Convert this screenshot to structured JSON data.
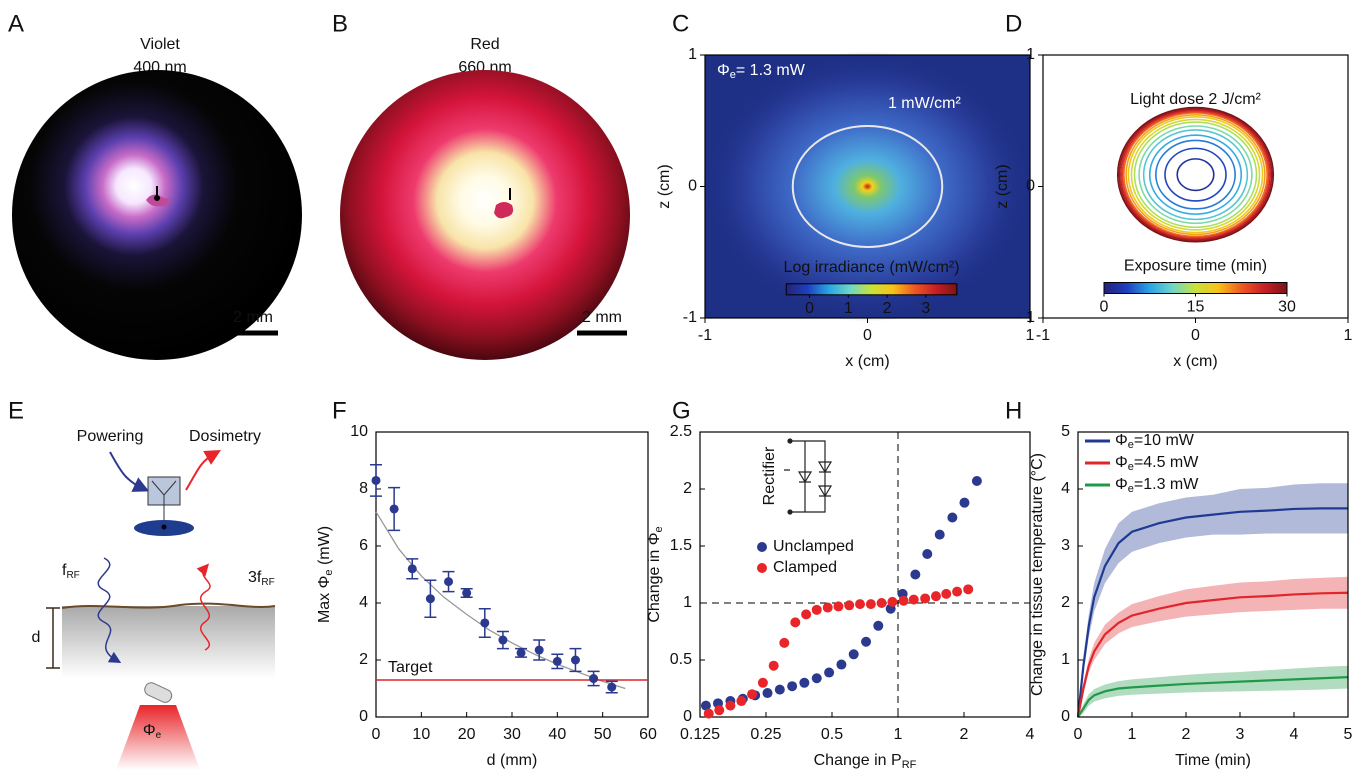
{
  "panels": {
    "A": {
      "label": "A",
      "title": [
        "Violet",
        "400 nm"
      ],
      "scale_bar": "2 mm"
    },
    "B": {
      "label": "B",
      "title": [
        "Red",
        "660 nm"
      ],
      "scale_bar": "2 mm"
    },
    "E": {
      "label": "E",
      "powering": "Powering",
      "dosimetry": "Dosimetry",
      "f_rf": {
        "main": "f",
        "sub": "RF"
      },
      "f3_rf": {
        "main": "3f",
        "sub": "RF"
      },
      "d": "d",
      "phi": {
        "main": "Φ",
        "sub": "e"
      }
    }
  },
  "chart_data": [
    {
      "type": "heatmap",
      "label": "C",
      "xlabel": "x (cm)",
      "ylabel": "z (cm)",
      "xlim": [
        -1,
        1
      ],
      "ylim": [
        -1,
        1
      ],
      "xticks": [
        -1,
        0,
        1
      ],
      "yticks": [
        -1,
        0,
        1
      ],
      "annotation": {
        "main": "Φ",
        "sub": "e",
        "tail": "= 1.3 mW"
      },
      "contour": {
        "label": "1 mW/cm²",
        "level": 1,
        "radius": 0.46,
        "color": "#e8e8e8"
      },
      "colorbar": {
        "label": "Log irradiance (mW/cm²)",
        "lim": [
          -0.6,
          3.8
        ],
        "ticks": [
          0,
          1,
          2,
          3
        ]
      }
    },
    {
      "type": "contour",
      "label": "D",
      "xlabel": "x (cm)",
      "ylabel": "z (cm)",
      "xlim": [
        -1,
        1
      ],
      "ylim": [
        -1,
        1
      ],
      "xticks": [
        -1,
        0,
        1
      ],
      "yticks": [
        -1,
        0,
        1
      ],
      "annotation": "Light dose 2 J/cm²",
      "center": [
        0,
        0.09
      ],
      "contours": [
        {
          "level": 2,
          "radius": 0.12
        },
        {
          "level": 4,
          "radius": 0.2
        },
        {
          "level": 6,
          "radius": 0.26
        },
        {
          "level": 8,
          "radius": 0.3
        },
        {
          "level": 10,
          "radius": 0.34
        },
        {
          "level": 12,
          "radius": 0.37
        },
        {
          "level": 14,
          "radius": 0.4
        },
        {
          "level": 16,
          "radius": 0.42
        },
        {
          "level": 18,
          "radius": 0.44
        },
        {
          "level": 20,
          "radius": 0.455
        },
        {
          "level": 22,
          "radius": 0.47
        },
        {
          "level": 24,
          "radius": 0.48
        },
        {
          "level": 26,
          "radius": 0.49
        },
        {
          "level": 28,
          "radius": 0.5
        },
        {
          "level": 30,
          "radius": 0.51
        }
      ],
      "colorbar": {
        "label": "Exposure time (min)",
        "lim": [
          0,
          30
        ],
        "ticks": [
          0,
          15,
          30
        ]
      }
    },
    {
      "type": "errorbar",
      "label": "F",
      "xlabel": "d (mm)",
      "ylabel": {
        "main": "Max Φ",
        "sub": "e",
        "tail": " (mW)"
      },
      "xlim": [
        0,
        60
      ],
      "ylim": [
        0,
        10
      ],
      "xticks": [
        0,
        10,
        20,
        30,
        40,
        50,
        60
      ],
      "yticks": [
        0,
        2,
        4,
        6,
        8,
        10
      ],
      "color": "#2b3a8f",
      "x": [
        0,
        4,
        8,
        12,
        16,
        20,
        24,
        28,
        32,
        36,
        40,
        44,
        48,
        52
      ],
      "values": [
        8.3,
        7.3,
        5.2,
        4.15,
        4.75,
        4.35,
        3.3,
        2.7,
        2.25,
        2.35,
        1.95,
        2.0,
        1.35,
        1.05
      ],
      "errors": [
        0.55,
        0.75,
        0.35,
        0.65,
        0.35,
        0.15,
        0.5,
        0.3,
        0.15,
        0.35,
        0.25,
        0.4,
        0.25,
        0.2
      ],
      "fit": {
        "color": "#999999",
        "x": [
          0,
          5,
          10,
          15,
          20,
          25,
          30,
          35,
          40,
          45,
          50,
          55
        ],
        "values": [
          7.2,
          5.9,
          4.95,
          4.2,
          3.6,
          3.05,
          2.6,
          2.2,
          1.85,
          1.55,
          1.25,
          1.0
        ]
      },
      "target": {
        "label": "Target",
        "value": 1.3,
        "color": "#d9262a"
      }
    },
    {
      "type": "scatter",
      "label": "G",
      "xlabel": {
        "main": "Change in P",
        "sub": "RF"
      },
      "ylabel": {
        "main": "Change in Φ",
        "sub": "e"
      },
      "xscale": "log2",
      "xlim": [
        0.125,
        4
      ],
      "ylim": [
        0,
        2.5
      ],
      "xticks": [
        0.125,
        0.25,
        0.5,
        1,
        2,
        4
      ],
      "yticks": [
        0,
        0.5,
        1,
        1.5,
        2,
        2.5
      ],
      "reference_lines": {
        "x": 1,
        "y": 1
      },
      "inset_label": "Rectifier",
      "series": [
        {
          "name": "Unclamped",
          "color": "#2b3a8f",
          "x": [
            0.133,
            0.151,
            0.172,
            0.196,
            0.223,
            0.254,
            0.289,
            0.329,
            0.374,
            0.426,
            0.485,
            0.552,
            0.628,
            0.715,
            0.813,
            0.926,
            1.05,
            1.2,
            1.36,
            1.55,
            1.77,
            2.01,
            2.29
          ],
          "values": [
            0.1,
            0.12,
            0.14,
            0.16,
            0.19,
            0.21,
            0.24,
            0.27,
            0.3,
            0.34,
            0.39,
            0.46,
            0.55,
            0.66,
            0.8,
            0.95,
            1.08,
            1.25,
            1.43,
            1.6,
            1.75,
            1.88,
            2.07
          ]
        },
        {
          "name": "Clamped",
          "color": "#e8262a",
          "x": [
            0.137,
            0.153,
            0.172,
            0.193,
            0.216,
            0.242,
            0.271,
            0.303,
            0.34,
            0.381,
            0.426,
            0.478,
            0.535,
            0.599,
            0.671,
            0.752,
            0.842,
            0.943,
            1.06,
            1.18,
            1.33,
            1.49,
            1.66,
            1.86,
            2.09
          ],
          "values": [
            0.03,
            0.06,
            0.1,
            0.14,
            0.2,
            0.3,
            0.45,
            0.65,
            0.83,
            0.9,
            0.94,
            0.96,
            0.97,
            0.98,
            0.99,
            0.99,
            1.0,
            1.01,
            1.02,
            1.03,
            1.04,
            1.06,
            1.08,
            1.1,
            1.12
          ]
        }
      ]
    },
    {
      "type": "line",
      "label": "H",
      "xlabel": "Time (min)",
      "ylabel": "Change in tissue temperature (°C)",
      "xlim": [
        0,
        5
      ],
      "ylim": [
        0,
        5
      ],
      "xticks": [
        0,
        1,
        2,
        3,
        4,
        5
      ],
      "yticks": [
        0,
        1,
        2,
        3,
        4,
        5
      ],
      "x": [
        0,
        0.1,
        0.2,
        0.3,
        0.5,
        0.75,
        1,
        1.5,
        2,
        2.5,
        3,
        3.5,
        4,
        4.5,
        5
      ],
      "series": [
        {
          "name": {
            "main": "Φ",
            "sub": "e",
            "tail": "=10 mW"
          },
          "color": "#1f3a93",
          "values": [
            0,
            0.9,
            1.6,
            2.1,
            2.65,
            3.05,
            3.25,
            3.4,
            3.5,
            3.55,
            3.6,
            3.62,
            3.65,
            3.66,
            3.66
          ],
          "lower": [
            0,
            0.75,
            1.4,
            1.85,
            2.35,
            2.7,
            2.9,
            3.05,
            3.15,
            3.2,
            3.2,
            3.22,
            3.22,
            3.22,
            3.22
          ],
          "upper": [
            0,
            1.05,
            1.8,
            2.35,
            2.95,
            3.4,
            3.6,
            3.75,
            3.85,
            3.9,
            4.0,
            4.02,
            4.08,
            4.1,
            4.1
          ]
        },
        {
          "name": {
            "main": "Φ",
            "sub": "e",
            "tail": "=4.5 mW"
          },
          "color": "#e0262b",
          "values": [
            0,
            0.5,
            0.9,
            1.15,
            1.45,
            1.65,
            1.78,
            1.9,
            2.0,
            2.05,
            2.1,
            2.12,
            2.15,
            2.17,
            2.18
          ],
          "lower": [
            0,
            0.4,
            0.78,
            1.0,
            1.28,
            1.47,
            1.58,
            1.68,
            1.76,
            1.8,
            1.84,
            1.86,
            1.88,
            1.9,
            1.9
          ],
          "upper": [
            0,
            0.6,
            1.02,
            1.3,
            1.62,
            1.83,
            1.98,
            2.12,
            2.24,
            2.3,
            2.36,
            2.38,
            2.42,
            2.44,
            2.46
          ]
        },
        {
          "name": {
            "main": "Φ",
            "sub": "e",
            "tail": "=1.3 mW"
          },
          "color": "#1f9a48",
          "values": [
            0,
            0.15,
            0.3,
            0.38,
            0.45,
            0.5,
            0.52,
            0.55,
            0.58,
            0.6,
            0.62,
            0.64,
            0.66,
            0.68,
            0.7
          ],
          "lower": [
            0,
            0.07,
            0.2,
            0.27,
            0.33,
            0.37,
            0.39,
            0.41,
            0.43,
            0.44,
            0.45,
            0.46,
            0.47,
            0.48,
            0.5
          ],
          "upper": [
            0,
            0.23,
            0.4,
            0.49,
            0.57,
            0.63,
            0.66,
            0.7,
            0.74,
            0.77,
            0.79,
            0.82,
            0.85,
            0.88,
            0.9
          ]
        }
      ]
    }
  ]
}
